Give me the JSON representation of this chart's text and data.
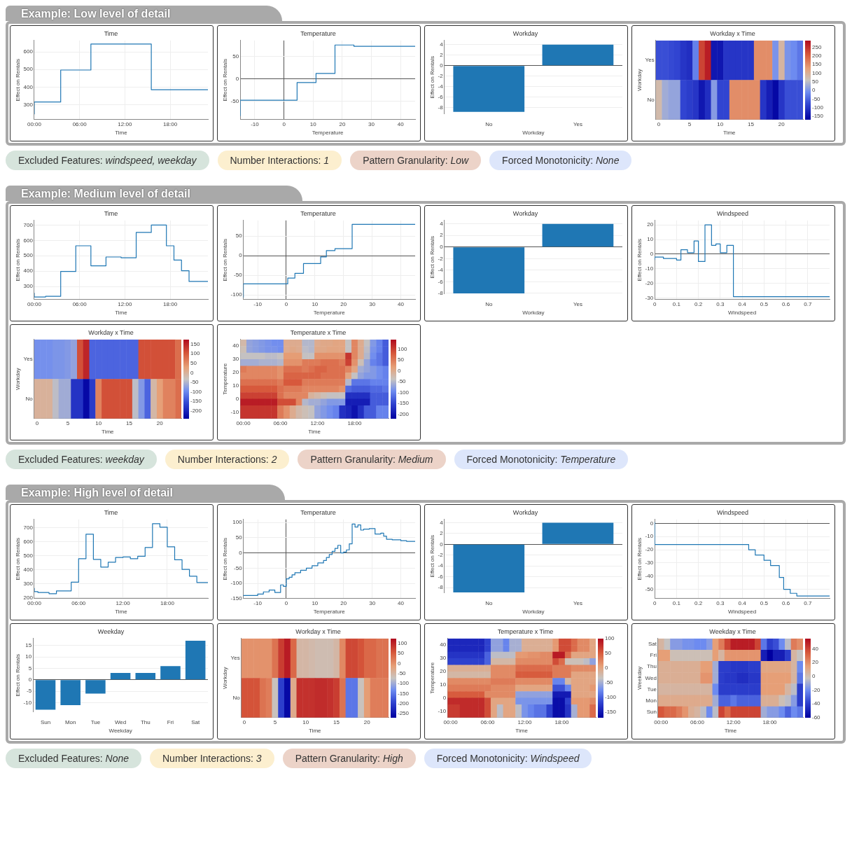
{
  "chart_data": [
    {
      "type": "other",
      "title": "Example: Low level of detail"
    },
    {
      "type": "step",
      "title": "Time",
      "xlabel": "Time",
      "ylabel": "Effect on Rentals",
      "color": "#1f77b4",
      "grid": true,
      "x": [
        0,
        3.5,
        7.5,
        15.5,
        19.5,
        23
      ],
      "values": [
        245,
        315,
        497,
        645,
        385,
        385
      ],
      "xlim": [
        0,
        23
      ],
      "xticks": [
        {
          "value": 0,
          "label": "00:00"
        },
        {
          "value": 6,
          "label": "06:00"
        },
        {
          "value": 12,
          "label": "12:00"
        },
        {
          "value": 18,
          "label": "18:00"
        }
      ],
      "ylim": [
        215,
        665
      ],
      "yticks": [
        300,
        400,
        500,
        600
      ]
    },
    {
      "type": "step",
      "title": "Temperature",
      "xlabel": "Temperature",
      "ylabel": "Effect on Rentals",
      "color": "#1f77b4",
      "grid": true,
      "x": [
        -15,
        4.5,
        11,
        17.5,
        24,
        27.5,
        45
      ],
      "values": [
        -82,
        -47,
        -8,
        12,
        75,
        72,
        72
      ],
      "xlim": [
        -15,
        45
      ],
      "xticks": [
        -10,
        0,
        10,
        20,
        30,
        40
      ],
      "ylim": [
        -90,
        85
      ],
      "yticks": [
        -50,
        0,
        50
      ]
    },
    {
      "type": "bar",
      "title": "Workday",
      "xlabel": "Workday",
      "ylabel": "Effect on Rentals",
      "color": "#1f77b4",
      "grid": "y",
      "categories": [
        "No",
        "Yes"
      ],
      "values": [
        -8.8,
        4
      ],
      "ylim": [
        -9.2,
        4.8
      ],
      "yticks": [
        -8,
        -6,
        -4,
        -2,
        0,
        2,
        4
      ]
    },
    {
      "type": "heatmap",
      "title": "Workday x Time",
      "xlabel": "Time",
      "ylabel": "Workday",
      "x": [
        0,
        1,
        2,
        3,
        4,
        5,
        6,
        7,
        8,
        9,
        10,
        11,
        12,
        13,
        14,
        15,
        16,
        17,
        18,
        19,
        20,
        21,
        22,
        23
      ],
      "xlim": [
        -0.5,
        23.5
      ],
      "xticks": [
        0,
        5,
        10,
        15,
        20
      ],
      "y_categories": [
        "Yes",
        "No"
      ],
      "clim": [
        -170,
        290
      ],
      "cticks": [
        -150,
        -100,
        -50,
        0,
        50,
        100,
        150,
        200,
        250
      ],
      "cells": [
        [
          -70,
          -70,
          -75,
          -80,
          -100,
          -110,
          -20,
          230,
          270,
          -140,
          -140,
          -100,
          -100,
          -100,
          -100,
          -100,
          150,
          150,
          150,
          0,
          90,
          0,
          -10,
          -30
        ],
        [
          80,
          30,
          20,
          20,
          -80,
          -90,
          -100,
          -140,
          -110,
          10,
          -80,
          -80,
          150,
          150,
          150,
          150,
          150,
          -100,
          -130,
          -160,
          -100,
          -70,
          -70,
          -70
        ]
      ]
    },
    {
      "type": "other",
      "annotations": [
        "Excluded Features: windspeed, weekday",
        "Number Interactions: 1",
        "Pattern Granularity: Low",
        "Forced Monotonicity: None"
      ]
    },
    {
      "type": "other",
      "title": "Example: Medium level of detail"
    },
    {
      "type": "step",
      "title": "Time",
      "xlabel": "Time",
      "ylabel": "Effect on Rentals",
      "color": "#1f77b4",
      "grid": true,
      "x": [
        0,
        1.5,
        3.5,
        5.5,
        7.5,
        9.5,
        11.5,
        13.5,
        15.5,
        17.5,
        18.5,
        19.5,
        20.5,
        21.5,
        23
      ],
      "values": [
        258,
        232,
        236,
        398,
        565,
        435,
        492,
        487,
        652,
        700,
        565,
        472,
        403,
        333,
        333
      ],
      "xlim": [
        0,
        23
      ],
      "xticks": [
        {
          "value": 0,
          "label": "00:00"
        },
        {
          "value": 6,
          "label": "06:00"
        },
        {
          "value": 12,
          "label": "12:00"
        },
        {
          "value": 18,
          "label": "18:00"
        }
      ],
      "ylim": [
        215,
        730
      ],
      "yticks": [
        300,
        400,
        500,
        600,
        700
      ]
    },
    {
      "type": "step",
      "title": "Temperature",
      "xlabel": "Temperature",
      "ylabel": "Effect on Rentals",
      "color": "#1f77b4",
      "grid": true,
      "x": [
        -15,
        0.5,
        3,
        6,
        12,
        14,
        17,
        23,
        24.5,
        45
      ],
      "values": [
        -107,
        -72,
        -57,
        -45,
        -20,
        -3,
        13,
        18,
        80,
        80
      ],
      "xlim": [
        -15,
        45
      ],
      "xticks": [
        -10,
        0,
        10,
        20,
        30,
        40
      ],
      "ylim": [
        -112,
        90
      ],
      "yticks": [
        -100,
        -50,
        0,
        50
      ]
    },
    {
      "type": "bar",
      "title": "Workday",
      "xlabel": "Workday",
      "ylabel": "Effect on Rentals",
      "color": "#1f77b4",
      "grid": "y",
      "categories": [
        "No",
        "Yes"
      ],
      "values": [
        -8,
        4
      ],
      "ylim": [
        -8.1,
        4.6
      ],
      "yticks": [
        -8,
        -6,
        -4,
        -2,
        0,
        2,
        4
      ]
    },
    {
      "type": "step",
      "title": "Windspeed",
      "xlabel": "Windspeed",
      "ylabel": "Effect on Rentals",
      "color": "#1f77b4",
      "grid": true,
      "x": [
        0,
        0.04,
        0.1,
        0.12,
        0.15,
        0.18,
        0.2,
        0.23,
        0.26,
        0.28,
        0.3,
        0.33,
        0.36,
        0.42,
        0.8
      ],
      "values": [
        -4,
        -2,
        -3,
        -4,
        3,
        1,
        9,
        -5,
        20,
        6,
        7,
        1,
        6,
        -29,
        -29
      ],
      "xlim": [
        0,
        0.8
      ],
      "xticks": [
        0,
        0.1,
        0.2,
        0.3,
        0.4,
        0.5,
        0.6,
        0.7
      ],
      "ylim": [
        -31,
        23
      ],
      "yticks": [
        -30,
        -20,
        -10,
        0,
        10,
        20
      ]
    },
    {
      "type": "heatmap",
      "title": "Workday x Time",
      "xlabel": "Time",
      "ylabel": "Workday",
      "x": [
        0,
        1,
        2,
        3,
        4,
        5,
        6,
        7,
        8,
        9,
        10,
        11,
        12,
        13,
        14,
        15,
        16,
        17,
        18,
        19,
        20,
        21,
        22,
        23
      ],
      "xlim": [
        -0.5,
        23.5
      ],
      "xticks": [
        0,
        5,
        10,
        15,
        20
      ],
      "y_categories": [
        "Yes",
        "No"
      ],
      "clim": [
        -240,
        175
      ],
      "cticks": [
        -200,
        -150,
        -100,
        -50,
        0,
        50,
        100,
        150
      ],
      "cells": [
        [
          -90,
          -90,
          -90,
          -85,
          -85,
          -80,
          -70,
          110,
          150,
          -130,
          -130,
          -130,
          -130,
          -130,
          -130,
          -130,
          -130,
          110,
          110,
          110,
          110,
          110,
          110,
          80
        ],
        [
          0,
          0,
          0,
          -40,
          -60,
          -60,
          -180,
          -180,
          -230,
          -170,
          60,
          110,
          110,
          110,
          110,
          110,
          -40,
          -80,
          -130,
          -10,
          30,
          60,
          60,
          80
        ]
      ]
    },
    {
      "type": "heatmap",
      "title": "Temperature x Time",
      "xlabel": "Time",
      "ylabel": "Temperature",
      "x": [
        0,
        1,
        2,
        3,
        4,
        5,
        6,
        7,
        8,
        9,
        10,
        11,
        12,
        13,
        14,
        15,
        16,
        17,
        18,
        19,
        20,
        21,
        22,
        23
      ],
      "xlim": [
        -0.5,
        23.5
      ],
      "xticks": [
        {
          "value": 0,
          "label": "00:00"
        },
        {
          "value": 6,
          "label": "06:00"
        },
        {
          "value": 12,
          "label": "12:00"
        },
        {
          "value": 18,
          "label": "18:00"
        }
      ],
      "ylim": [
        -15,
        45
      ],
      "yticks": [
        -10,
        0,
        10,
        20,
        30,
        40
      ],
      "clim": [
        -220,
        145
      ],
      "cticks": [
        -200,
        -150,
        -100,
        -50,
        0,
        50,
        100
      ],
      "cells": [
        [
          -20,
          -70,
          -75,
          -80,
          -85,
          -90,
          -90,
          0,
          0,
          0,
          -50,
          -50,
          0,
          5,
          5,
          10,
          10,
          -40,
          40,
          0,
          -40,
          -80,
          -100,
          -130
        ],
        [
          -30,
          -70,
          -75,
          -80,
          -85,
          -85,
          -90,
          0,
          5,
          0,
          -45,
          -50,
          5,
          5,
          10,
          10,
          10,
          -40,
          40,
          0,
          -45,
          -85,
          -100,
          -130
        ],
        [
          -40,
          -40,
          -40,
          -40,
          -45,
          -45,
          -40,
          20,
          20,
          20,
          -40,
          -40,
          30,
          30,
          30,
          30,
          30,
          110,
          40,
          0,
          -50,
          -90,
          -110,
          -130
        ],
        [
          -60,
          -60,
          -60,
          -55,
          -55,
          -55,
          -50,
          30,
          30,
          30,
          50,
          50,
          50,
          60,
          60,
          60,
          50,
          100,
          30,
          -30,
          -70,
          -100,
          -110,
          -130
        ],
        [
          50,
          40,
          40,
          40,
          40,
          40,
          30,
          60,
          60,
          60,
          50,
          60,
          70,
          70,
          60,
          60,
          60,
          40,
          10,
          -60,
          -70,
          -80,
          -90,
          -100
        ],
        [
          40,
          40,
          40,
          40,
          40,
          40,
          30,
          70,
          70,
          70,
          70,
          70,
          70,
          60,
          60,
          60,
          60,
          10,
          -40,
          -70,
          -80,
          -80,
          -90,
          -100
        ],
        [
          60,
          60,
          60,
          60,
          60,
          60,
          50,
          80,
          80,
          80,
          50,
          50,
          50,
          50,
          50,
          50,
          50,
          -50,
          -110,
          -110,
          -110,
          -100,
          -100,
          -100
        ],
        [
          80,
          80,
          80,
          80,
          80,
          80,
          60,
          50,
          50,
          50,
          40,
          40,
          40,
          40,
          40,
          40,
          30,
          -120,
          -130,
          -130,
          -130,
          -120,
          -120,
          -110
        ],
        [
          100,
          100,
          100,
          100,
          100,
          100,
          60,
          40,
          40,
          40,
          40,
          -10,
          -20,
          -30,
          -40,
          -40,
          -40,
          -170,
          -170,
          -170,
          -170,
          -130,
          -130,
          -130
        ],
        [
          130,
          130,
          130,
          130,
          130,
          130,
          90,
          90,
          90,
          40,
          -50,
          -60,
          -60,
          -70,
          -80,
          -80,
          -80,
          -190,
          -190,
          -190,
          -190,
          -130,
          -130,
          -130
        ],
        [
          110,
          110,
          110,
          110,
          110,
          110,
          50,
          30,
          0,
          -20,
          -30,
          -40,
          -70,
          -80,
          -90,
          -100,
          -170,
          -180,
          -200,
          -170,
          -130,
          -130,
          -100,
          -100
        ],
        [
          110,
          110,
          110,
          110,
          110,
          110,
          50,
          30,
          0,
          -20,
          -30,
          -40,
          -70,
          -80,
          -90,
          -100,
          -170,
          -180,
          -200,
          -170,
          -130,
          -130,
          -100,
          -100
        ]
      ]
    },
    {
      "type": "other",
      "annotations": [
        "Excluded Features: weekday",
        "Number Interactions: 2",
        "Pattern Granularity: Medium",
        "Forced Monotonicity: Temperature"
      ]
    },
    {
      "type": "other",
      "title": "Example: High level of detail"
    },
    {
      "type": "step",
      "title": "Time",
      "xlabel": "Time",
      "ylabel": "Effect on Rentals",
      "color": "#1f77b4",
      "grid": true,
      "x": [
        0,
        0.5,
        2,
        3,
        5,
        6,
        7,
        8,
        9,
        10,
        11,
        12,
        13,
        14,
        15,
        16,
        17,
        18,
        19,
        20,
        21,
        22,
        23,
        23.5
      ],
      "values": [
        270,
        245,
        238,
        230,
        250,
        312,
        480,
        655,
        475,
        420,
        455,
        488,
        492,
        480,
        497,
        560,
        730,
        705,
        565,
        472,
        403,
        355,
        310,
        310
      ],
      "xlim": [
        0,
        23.5
      ],
      "xticks": [
        {
          "value": 0,
          "label": "00:00"
        },
        {
          "value": 6,
          "label": "06:00"
        },
        {
          "value": 12,
          "label": "12:00"
        },
        {
          "value": 18,
          "label": "18:00"
        }
      ],
      "ylim": [
        195,
        760
      ],
      "yticks": [
        200,
        300,
        400,
        500,
        600,
        700
      ]
    },
    {
      "type": "step",
      "title": "Temperature",
      "xlabel": "Temperature",
      "ylabel": "Effect on Rentals",
      "color": "#1f77b4",
      "grid": true,
      "x": [
        -15,
        -10,
        -8,
        -6,
        -4,
        -2,
        -1,
        0,
        1,
        2,
        3,
        5,
        7,
        9,
        11,
        13,
        14,
        15,
        16,
        17,
        18,
        19,
        20,
        21,
        22,
        23,
        24,
        25,
        26,
        27,
        29,
        31,
        33,
        34,
        35,
        37,
        40,
        42,
        44,
        45
      ],
      "values": [
        -142,
        -140,
        -135,
        -128,
        -122,
        -130,
        -105,
        -110,
        -85,
        -80,
        -72,
        -65,
        -57,
        -50,
        -42,
        -33,
        -25,
        -15,
        -5,
        5,
        15,
        25,
        0,
        3,
        10,
        30,
        95,
        85,
        92,
        75,
        78,
        80,
        62,
        65,
        55,
        45,
        43,
        40,
        38,
        38
      ],
      "xlim": [
        -15,
        45
      ],
      "xticks": [
        -10,
        0,
        10,
        20,
        30,
        40
      ],
      "ylim": [
        -150,
        110
      ],
      "yticks": [
        -150,
        -100,
        -50,
        0,
        50,
        100
      ]
    },
    {
      "type": "bar",
      "title": "Workday",
      "xlabel": "Workday",
      "ylabel": "Effect on Rentals",
      "color": "#1f77b4",
      "grid": "y",
      "categories": [
        "No",
        "Yes"
      ],
      "values": [
        -8.9,
        4
      ],
      "ylim": [
        -9,
        4.6
      ],
      "yticks": [
        -8,
        -6,
        -4,
        -2,
        0,
        2,
        4
      ]
    },
    {
      "type": "step",
      "title": "Windspeed",
      "xlabel": "Windspeed",
      "ylabel": "Effect on Rentals",
      "color": "#1f77b4",
      "grid": true,
      "x": [
        0,
        0.43,
        0.46,
        0.5,
        0.53,
        0.57,
        0.59,
        0.62,
        0.65,
        0.67,
        0.8
      ],
      "values": [
        1,
        -16,
        -20,
        -24,
        -28,
        -32,
        -41,
        -50,
        -53,
        -55,
        -55
      ],
      "xlim": [
        0,
        0.8
      ],
      "xticks": [
        0,
        0.1,
        0.2,
        0.3,
        0.4,
        0.5,
        0.6,
        0.7
      ],
      "ylim": [
        -57,
        3
      ],
      "yticks": [
        -50,
        -40,
        -30,
        -20,
        -10,
        0
      ]
    },
    {
      "type": "bar",
      "title": "Weekday",
      "xlabel": "Weekday",
      "ylabel": "Effect on Rentals",
      "color": "#1f77b4",
      "grid": "y",
      "categories": [
        "Sun",
        "Mon",
        "Tue",
        "Wed",
        "Thu",
        "Fri",
        "Sat"
      ],
      "values": [
        -13,
        -11,
        -6,
        3,
        3,
        6,
        17
      ],
      "ylim": [
        -14,
        18
      ],
      "yticks": [
        -10,
        -5,
        0,
        5,
        10,
        15
      ]
    },
    {
      "type": "heatmap",
      "title": "Workday x Time",
      "xlabel": "Time",
      "ylabel": "Workday",
      "x": [
        0,
        1,
        2,
        3,
        4,
        5,
        6,
        7,
        8,
        9,
        10,
        11,
        12,
        13,
        14,
        15,
        16,
        17,
        18,
        19,
        20,
        21,
        22,
        23
      ],
      "xlim": [
        -0.5,
        23.5
      ],
      "xticks": [
        0,
        5,
        10,
        15,
        20
      ],
      "y_categories": [
        "Yes",
        "No"
      ],
      "clim": [
        -270,
        125
      ],
      "cticks": [
        -250,
        -200,
        -150,
        -100,
        -50,
        0,
        50,
        100
      ],
      "cells": [
        [
          0,
          0,
          0,
          0,
          0,
          30,
          80,
          110,
          40,
          -50,
          -50,
          -55,
          -60,
          -60,
          -60,
          -50,
          10,
          70,
          70,
          60,
          40,
          40,
          30,
          30
        ],
        [
          60,
          60,
          60,
          30,
          20,
          -70,
          -200,
          -260,
          -30,
          90,
          90,
          90,
          95,
          95,
          90,
          80,
          30,
          -150,
          -150,
          -70,
          -10,
          20,
          20,
          20
        ]
      ]
    },
    {
      "type": "heatmap",
      "title": "Temperature x Time",
      "xlabel": "Time",
      "ylabel": "Temperature",
      "x": [
        0,
        1,
        2,
        3,
        4,
        5,
        6,
        7,
        8,
        9,
        10,
        11,
        12,
        13,
        14,
        15,
        16,
        17,
        18,
        19,
        20,
        21,
        22,
        23
      ],
      "xlim": [
        -0.5,
        23.5
      ],
      "xticks": [
        {
          "value": 0,
          "label": "00:00"
        },
        {
          "value": 6,
          "label": "06:00"
        },
        {
          "value": 12,
          "label": "12:00"
        },
        {
          "value": 18,
          "label": "18:00"
        }
      ],
      "ylim": [
        -15,
        45
      ],
      "yticks": [
        -10,
        0,
        10,
        20,
        30,
        40
      ],
      "clim": [
        -170,
        100
      ],
      "cticks": [
        -150,
        -100,
        -50,
        0,
        50,
        100
      ],
      "cells": [
        [
          -140,
          -140,
          -140,
          -140,
          -140,
          -140,
          -120,
          -60,
          -60,
          -80,
          -50,
          -50,
          -10,
          -10,
          -10,
          -10,
          -10,
          10,
          60,
          60,
          40,
          20,
          20,
          0
        ],
        [
          -140,
          -140,
          -140,
          -140,
          -140,
          -140,
          -120,
          -60,
          -60,
          -80,
          -50,
          -50,
          -10,
          -10,
          -10,
          -10,
          -10,
          10,
          60,
          60,
          40,
          20,
          20,
          0
        ],
        [
          -130,
          -130,
          -130,
          -130,
          -130,
          -130,
          -100,
          -40,
          -40,
          -40,
          -40,
          10,
          10,
          15,
          15,
          20,
          20,
          90,
          90,
          40,
          0,
          0,
          0,
          0
        ],
        [
          -120,
          -120,
          -120,
          -120,
          -120,
          -120,
          -100,
          -20,
          -20,
          -20,
          -20,
          20,
          20,
          20,
          20,
          20,
          20,
          60,
          40,
          -30,
          -30,
          -30,
          -40,
          -60
        ],
        [
          -10,
          -10,
          -10,
          -10,
          -10,
          -10,
          -10,
          20,
          20,
          20,
          20,
          40,
          40,
          40,
          40,
          40,
          40,
          30,
          30,
          30,
          20,
          20,
          20,
          20
        ],
        [
          -20,
          -20,
          -20,
          -20,
          -20,
          -20,
          -20,
          20,
          20,
          20,
          20,
          50,
          50,
          50,
          50,
          50,
          50,
          30,
          30,
          30,
          0,
          0,
          0,
          0
        ],
        [
          20,
          20,
          20,
          20,
          20,
          20,
          20,
          30,
          30,
          30,
          30,
          20,
          20,
          20,
          20,
          20,
          20,
          -80,
          -80,
          -20,
          0,
          0,
          0,
          0
        ],
        [
          30,
          30,
          30,
          30,
          30,
          30,
          30,
          20,
          20,
          20,
          20,
          0,
          0,
          0,
          0,
          0,
          0,
          -110,
          -110,
          -80,
          0,
          0,
          0,
          10
        ],
        [
          50,
          50,
          50,
          50,
          50,
          50,
          20,
          20,
          20,
          20,
          20,
          -60,
          -60,
          -60,
          -60,
          -60,
          -60,
          -150,
          -150,
          -150,
          0,
          0,
          0,
          0
        ],
        [
          80,
          80,
          80,
          80,
          80,
          80,
          60,
          0,
          0,
          0,
          0,
          -70,
          -70,
          -70,
          -70,
          -70,
          -70,
          -160,
          -160,
          -120,
          10,
          10,
          10,
          20
        ],
        [
          70,
          70,
          80,
          80,
          80,
          80,
          60,
          0,
          -40,
          0,
          0,
          -40,
          -70,
          -80,
          -90,
          -90,
          -120,
          -160,
          -160,
          -130,
          -50,
          10,
          10,
          40
        ],
        [
          70,
          70,
          80,
          80,
          80,
          80,
          60,
          0,
          -40,
          0,
          0,
          -40,
          -70,
          -80,
          -90,
          -90,
          -120,
          -160,
          -160,
          -130,
          -50,
          10,
          10,
          40
        ]
      ]
    },
    {
      "type": "heatmap",
      "title": "Weekday x Time",
      "xlabel": "Time",
      "ylabel": "Weekday",
      "x": [
        0,
        1,
        2,
        3,
        4,
        5,
        6,
        7,
        8,
        9,
        10,
        11,
        12,
        13,
        14,
        15,
        16,
        17,
        18,
        19,
        20,
        21,
        22,
        23
      ],
      "xlim": [
        -0.5,
        23.5
      ],
      "xticks": [
        {
          "value": 0,
          "label": "00:00"
        },
        {
          "value": 6,
          "label": "06:00"
        },
        {
          "value": 12,
          "label": "12:00"
        },
        {
          "value": 18,
          "label": "18:00"
        }
      ],
      "y_categories": [
        "Sat",
        "Fri",
        "Thu",
        "Wed",
        "Tue",
        "Mon",
        "Sun"
      ],
      "clim": [
        -60,
        55
      ],
      "cticks": [
        -60,
        -40,
        -20,
        0,
        20,
        40
      ],
      "cells": [
        [
          5,
          -3,
          -15,
          -15,
          -18,
          -18,
          -20,
          -20,
          -15,
          15,
          25,
          40,
          50,
          50,
          50,
          50,
          40,
          -25,
          -40,
          -35,
          -20,
          -5,
          25,
          20
        ],
        [
          15,
          15,
          0,
          0,
          0,
          0,
          0,
          0,
          0,
          15,
          5,
          18,
          18,
          18,
          18,
          18,
          18,
          -50,
          -60,
          -50,
          -50,
          -40,
          5,
          -3
        ],
        [
          8,
          8,
          8,
          8,
          8,
          8,
          8,
          15,
          15,
          -10,
          -40,
          -40,
          -42,
          -42,
          -42,
          -40,
          -40,
          12,
          12,
          12,
          12,
          12,
          5,
          -20
        ],
        [
          8,
          8,
          8,
          8,
          8,
          8,
          8,
          18,
          18,
          -10,
          -40,
          -42,
          -42,
          -45,
          -45,
          -42,
          -42,
          15,
          15,
          15,
          15,
          15,
          5,
          -25
        ],
        [
          5,
          5,
          5,
          5,
          5,
          5,
          5,
          5,
          5,
          -20,
          -40,
          -40,
          -40,
          -40,
          -40,
          -40,
          -40,
          15,
          15,
          15,
          15,
          5,
          -5,
          -40
        ],
        [
          10,
          10,
          10,
          10,
          10,
          10,
          10,
          10,
          10,
          -10,
          -30,
          -30,
          -25,
          -30,
          -30,
          -30,
          -30,
          8,
          8,
          8,
          0,
          -5,
          -15,
          -40
        ],
        [
          35,
          30,
          30,
          25,
          18,
          8,
          5,
          -5,
          -20,
          -5,
          40,
          30,
          40,
          40,
          40,
          40,
          40,
          -10,
          -15,
          -15,
          -20,
          -30,
          -20,
          -25
        ]
      ]
    },
    {
      "type": "other",
      "annotations": [
        "Excluded Features: None",
        "Number Interactions: 3",
        "Pattern Granularity: High",
        "Forced Monotonicity: Windspeed"
      ]
    }
  ]
}
